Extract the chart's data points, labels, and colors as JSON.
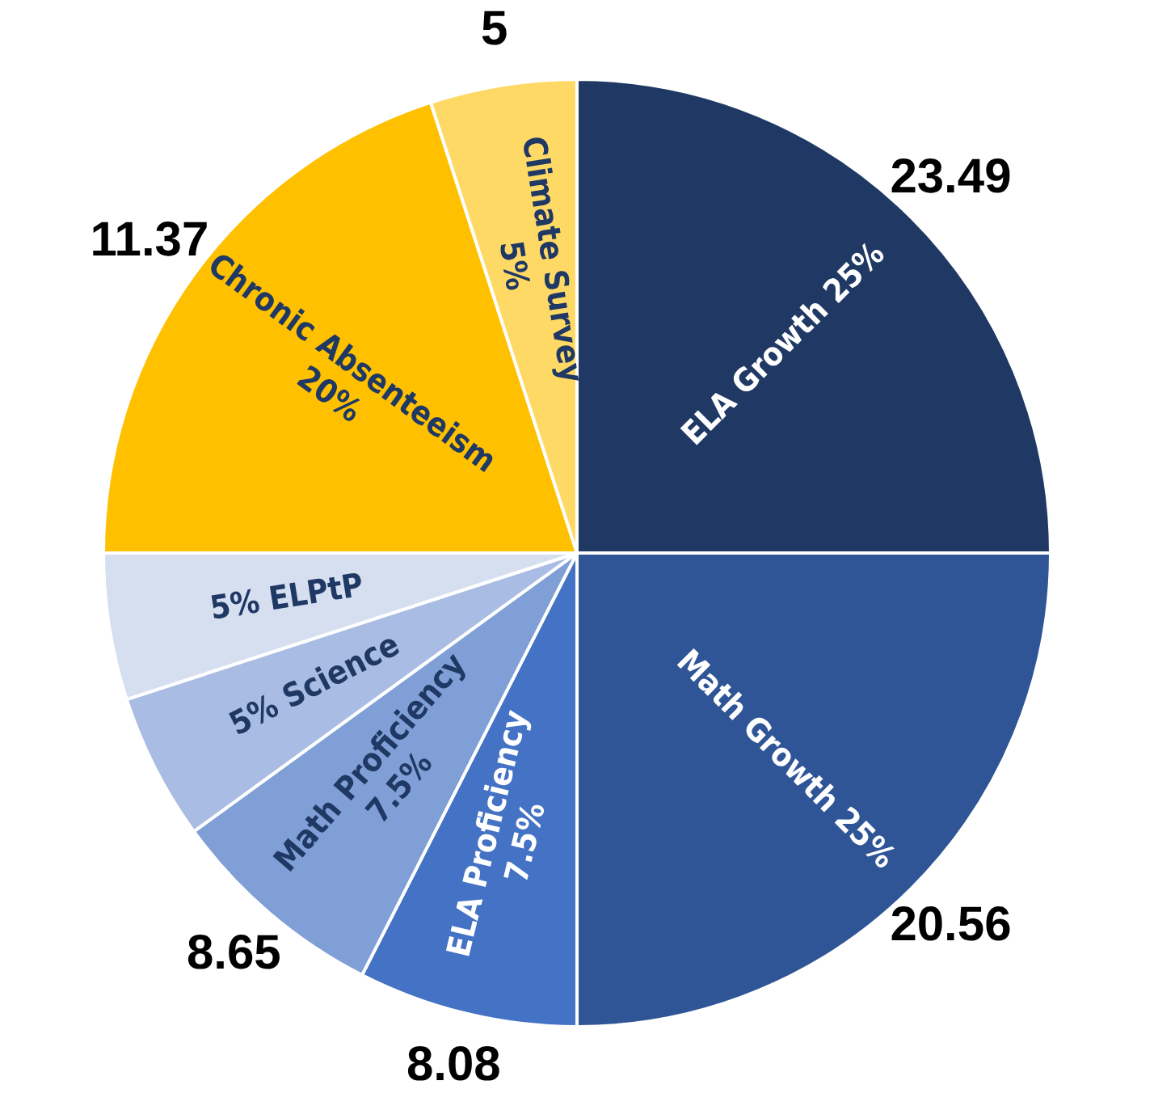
{
  "chart_data": {
    "type": "pie",
    "categories": [
      "ELA Growth 25%",
      "Math Growth 25%",
      "ELA Proficiency\n7.5%",
      "Math Proficiency\n7.5%",
      "5% Science",
      "5% ELPtP",
      "Chronic Absenteeism\n20%",
      "Climate Survey\n5%"
    ],
    "values": [
      25,
      25,
      7.5,
      7.5,
      5,
      5,
      20,
      5
    ],
    "colors": [
      "#1f3864",
      "#2f5597",
      "#4472c4",
      "#7f9fd6",
      "#a9bce3",
      "#d6dff0",
      "#ffc000",
      "#ffd966"
    ],
    "annotations": [
      {
        "text": "23.49",
        "x": "ELA Growth 25%"
      },
      {
        "text": "20.56",
        "x": "Math Growth 25%"
      },
      {
        "text": "8.08",
        "x": "ELA Proficiency\n7.5%"
      },
      {
        "text": "8.65",
        "x": "Math Proficiency\n7.5%"
      },
      {
        "text": "11.37",
        "x": "Chronic Absenteeism\n20%"
      },
      {
        "text": "5",
        "x": "Climate Survey\n5%"
      }
    ],
    "legend": false
  }
}
